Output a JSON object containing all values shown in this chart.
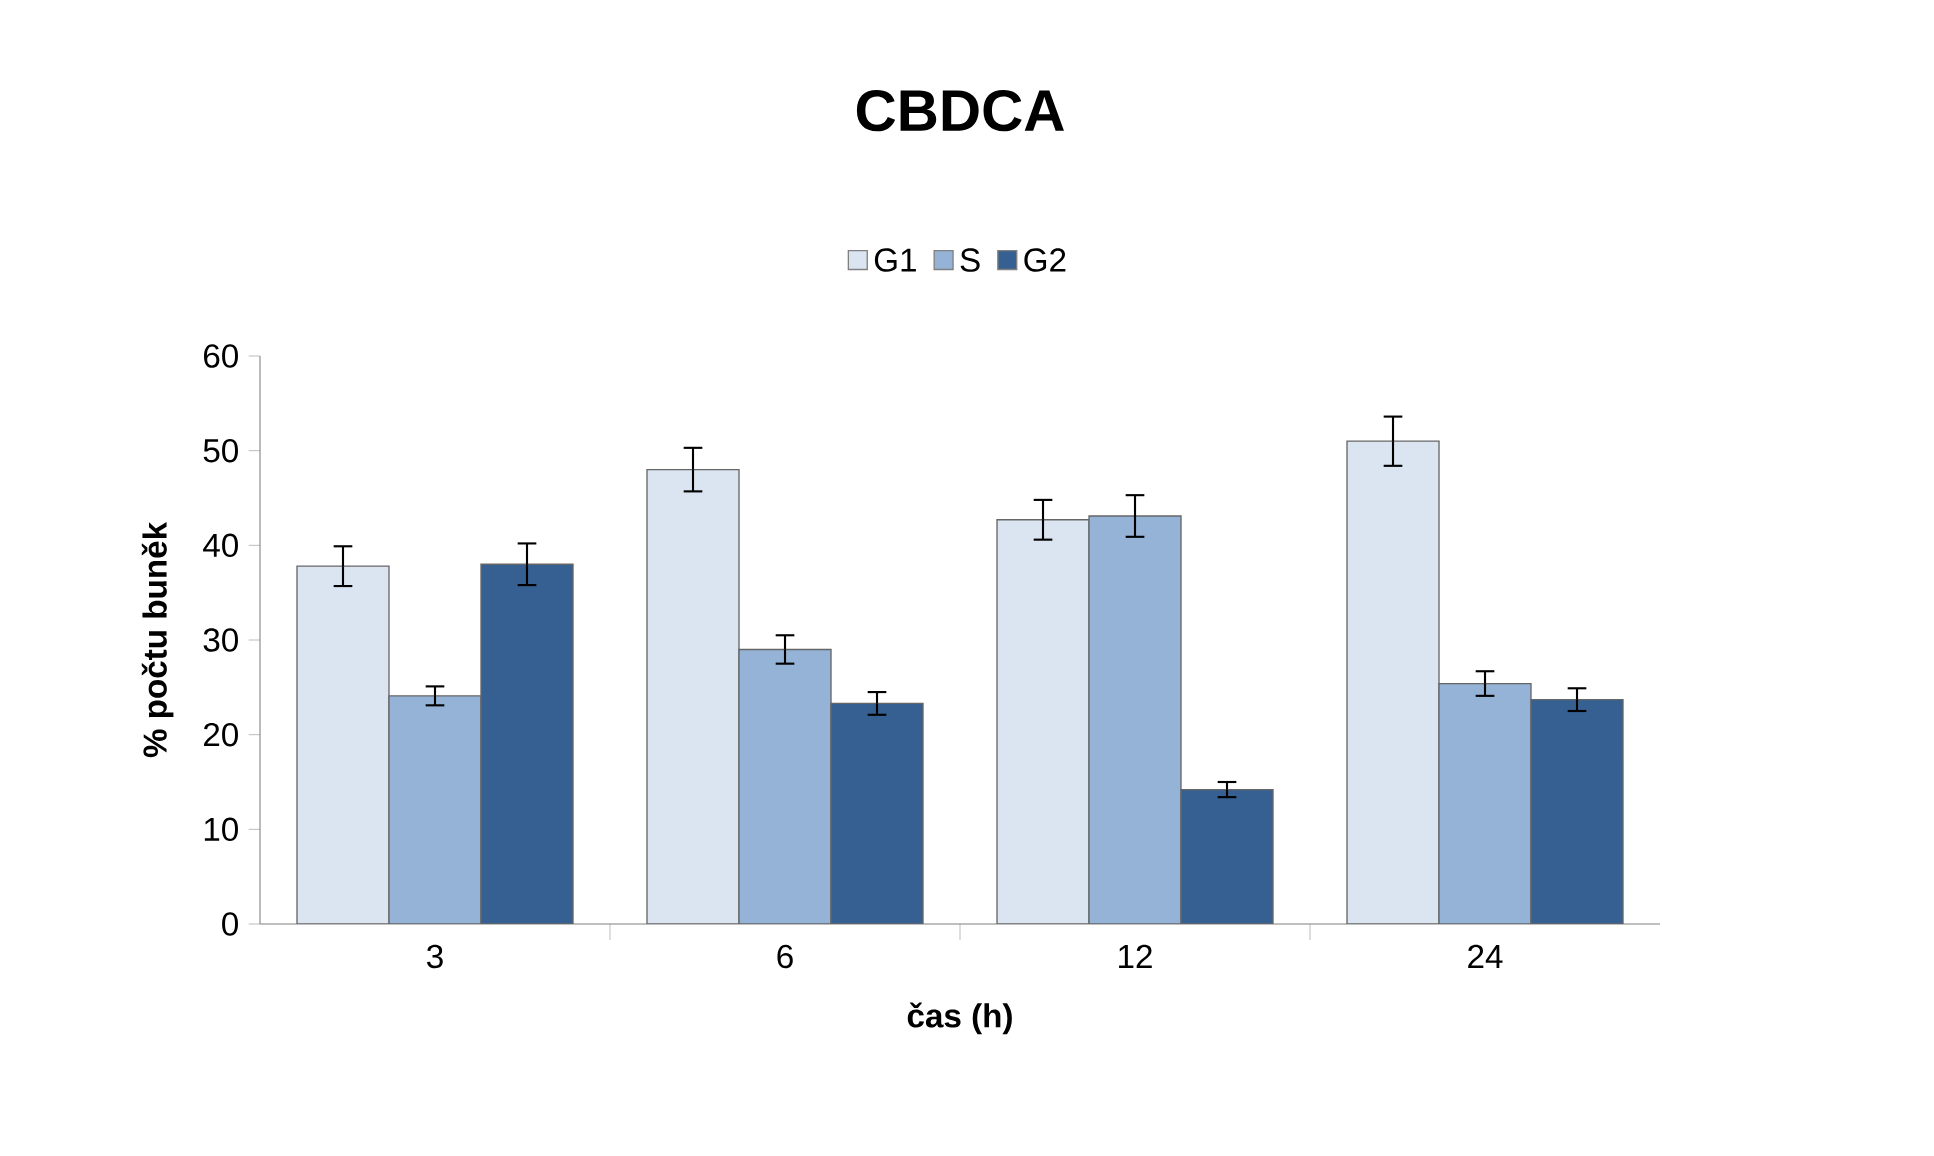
{
  "chart_data": {
    "type": "bar",
    "title": "CBDCA",
    "xlabel": "čas (h)",
    "ylabel": "% počtu buněk",
    "categories": [
      "3",
      "6",
      "12",
      "24"
    ],
    "series": [
      {
        "name": "G1",
        "color": "#dbe5f1",
        "values": [
          37.8,
          48.0,
          42.7,
          51.0
        ],
        "errors": [
          2.1,
          2.3,
          2.1,
          2.6
        ]
      },
      {
        "name": "S",
        "color": "#95b3d7",
        "values": [
          24.1,
          29.0,
          43.1,
          25.4
        ],
        "errors": [
          1.0,
          1.5,
          2.2,
          1.3
        ]
      },
      {
        "name": "G2",
        "color": "#366092",
        "values": [
          38.0,
          23.3,
          14.2,
          23.7
        ],
        "errors": [
          2.2,
          1.2,
          0.8,
          1.2
        ]
      }
    ],
    "ylim": [
      0,
      60
    ],
    "yticks": [
      0,
      10,
      20,
      30,
      40,
      50,
      60
    ],
    "grid": false,
    "legend": "top"
  }
}
